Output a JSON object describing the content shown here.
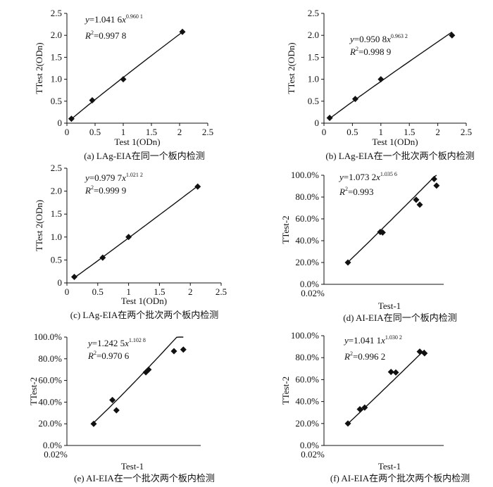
{
  "chart_data": [
    {
      "type": "scatter",
      "panel": "a",
      "caption": "(a) LAg-EIA在同一个板内检测",
      "xlabel": "Test 1(ODn)",
      "ylabel": "TTest 2(ODn)",
      "x_ticks": [
        "0",
        "0.5",
        "1",
        "1.5",
        "2",
        "2.5"
      ],
      "y_ticks": [
        "0",
        "0.5",
        "1.0",
        "1.5",
        "2.0",
        "2.5"
      ],
      "xlim": [
        0,
        2.5
      ],
      "ylim": [
        0,
        2.5
      ],
      "equation": {
        "coef": "1.041 6",
        "exp": "0.960 1"
      },
      "r2": "0.997 8",
      "points": [
        [
          0.08,
          0.1
        ],
        [
          0.45,
          0.52
        ],
        [
          1.0,
          1.0
        ],
        [
          2.05,
          2.08
        ]
      ],
      "grid": false,
      "legend": "none"
    },
    {
      "type": "scatter",
      "panel": "b",
      "caption": "(b) LAg-EIA在一个批次两个板内检测",
      "xlabel": "Test 1(ODn)",
      "ylabel": "TTest 2(ODn)",
      "x_ticks": [
        "0",
        "0.5",
        "1",
        "1.5",
        "2",
        "2.5"
      ],
      "y_ticks": [
        "0",
        "0.5",
        "1.0",
        "1.5",
        "2.0",
        "2.5"
      ],
      "xlim": [
        0,
        2.5
      ],
      "ylim": [
        0,
        2.5
      ],
      "equation": {
        "coef": "0.950 8",
        "exp": "0.963 2"
      },
      "r2": "0.998 9",
      "points": [
        [
          0.1,
          0.12
        ],
        [
          0.55,
          0.55
        ],
        [
          1.0,
          1.0
        ],
        [
          2.25,
          2.0
        ]
      ],
      "grid": false,
      "legend": "none"
    },
    {
      "type": "scatter",
      "panel": "c",
      "caption": "(c) LAg-EIA在两个批次两个板内检测",
      "xlabel": "Test 1(ODn)",
      "ylabel": "TTest 2(ODn)",
      "x_ticks": [
        "0",
        "0.5",
        "1",
        "1.5",
        "2",
        "2.5"
      ],
      "y_ticks": [
        "0",
        "0.5",
        "1.0",
        "1.5",
        "2.0",
        "2.5"
      ],
      "xlim": [
        0,
        2.5
      ],
      "ylim": [
        0,
        2.5
      ],
      "equation": {
        "coef": "0.979 7",
        "exp": "1.021 2"
      },
      "r2": "0.999 9",
      "points": [
        [
          0.12,
          0.13
        ],
        [
          0.58,
          0.55
        ],
        [
          1.0,
          1.0
        ],
        [
          2.12,
          2.1
        ]
      ],
      "grid": false,
      "legend": "none"
    },
    {
      "type": "scatter",
      "panel": "d",
      "caption": "(d) AI-EIA在同一个板内检测",
      "xlabel": "Test-1",
      "ylabel": "TTest-2",
      "x_ticks": [
        "0.02%"
      ],
      "y_ticks": [
        "0.0%",
        "20.0%",
        "40.0%",
        "60.0%",
        "80.0%",
        "100.0%"
      ],
      "ylim": [
        0,
        100
      ],
      "equation": {
        "coef": "1.073 2",
        "exp": "1.035 6"
      },
      "r2": "0.993",
      "points": [
        [
          20,
          20
        ],
        [
          47,
          48
        ],
        [
          49,
          47.5
        ],
        [
          77,
          77.5
        ],
        [
          80,
          73
        ],
        [
          92,
          96.5
        ],
        [
          94,
          90.5
        ]
      ],
      "grid": false,
      "legend": "none"
    },
    {
      "type": "scatter",
      "panel": "e",
      "caption": "(e) AI-EIA在一个批次两个板内检测",
      "xlabel": "Test-1",
      "ylabel": "TTest-2",
      "x_ticks": [
        "0.02%"
      ],
      "y_ticks": [
        "0.0%",
        "20.0%",
        "40.0%",
        "60.0%",
        "80.0%",
        "100.0%"
      ],
      "ylim": [
        0,
        100
      ],
      "equation": {
        "coef": "1.242 5",
        "exp": "1.102 8"
      },
      "r2": "0.970 6",
      "points": [
        [
          20,
          20
        ],
        [
          34,
          42
        ],
        [
          37,
          32.5
        ],
        [
          59,
          67.5
        ],
        [
          61,
          70
        ],
        [
          80,
          87
        ],
        [
          87,
          88.5
        ]
      ],
      "grid": false,
      "legend": "none"
    },
    {
      "type": "scatter",
      "panel": "f",
      "caption": "(f) AI-EIA在两个批次两个板内检测",
      "xlabel": "Test-1",
      "ylabel": "TTest-2",
      "x_ticks": [
        "0.02%"
      ],
      "y_ticks": [
        "0.0%",
        "20.0%",
        "40.0%",
        "60.0%",
        "80.0%",
        "100.0%"
      ],
      "ylim": [
        0,
        100
      ],
      "equation": {
        "coef": "1.041 1",
        "exp": "1.030 2"
      },
      "r2": "0.996 2",
      "points": [
        [
          20,
          20
        ],
        [
          30,
          33
        ],
        [
          34,
          34.5
        ],
        [
          56,
          67
        ],
        [
          60,
          66.5
        ],
        [
          80,
          85.5
        ],
        [
          84,
          84
        ]
      ],
      "grid": false,
      "legend": "none"
    }
  ]
}
